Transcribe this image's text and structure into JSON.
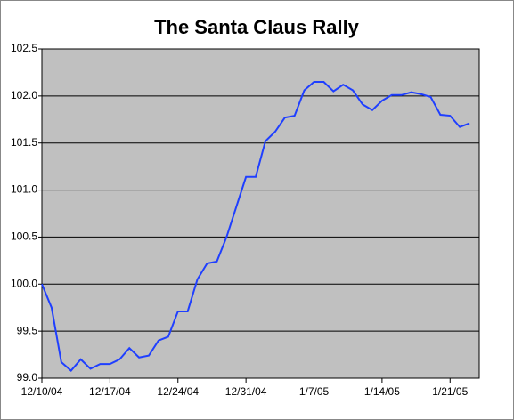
{
  "chart_data": {
    "type": "line",
    "title": "The Santa Claus Rally",
    "x": [
      "12/10/04",
      "12/11/04",
      "12/12/04",
      "12/13/04",
      "12/14/04",
      "12/15/04",
      "12/16/04",
      "12/17/04",
      "12/18/04",
      "12/19/04",
      "12/20/04",
      "12/21/04",
      "12/22/04",
      "12/23/04",
      "12/24/04",
      "12/25/04",
      "12/26/04",
      "12/27/04",
      "12/28/04",
      "12/29/04",
      "12/30/04",
      "12/31/04",
      "1/1/05",
      "1/2/05",
      "1/3/05",
      "1/4/05",
      "1/5/05",
      "1/6/05",
      "1/7/05",
      "1/8/05",
      "1/9/05",
      "1/10/05",
      "1/11/05",
      "1/12/05",
      "1/13/05",
      "1/14/05",
      "1/15/05",
      "1/16/05",
      "1/17/05",
      "1/18/05",
      "1/19/05",
      "1/20/05",
      "1/21/05",
      "1/22/05",
      "1/23/05"
    ],
    "values": [
      100.0,
      99.75,
      99.17,
      99.08,
      99.2,
      99.1,
      99.15,
      99.15,
      99.2,
      99.32,
      99.22,
      99.24,
      99.4,
      99.44,
      99.71,
      99.71,
      100.05,
      100.22,
      100.24,
      100.5,
      100.82,
      101.14,
      101.14,
      101.52,
      101.62,
      101.77,
      101.79,
      102.06,
      102.15,
      102.15,
      102.05,
      102.12,
      102.06,
      101.91,
      101.85,
      101.95,
      102.01,
      102.01,
      102.04,
      102.02,
      101.99,
      101.8,
      101.79,
      101.67,
      101.71
    ],
    "color": "#1f3fff",
    "xlim": [
      "12/10/04",
      "1/24/05"
    ],
    "xticks": [
      "12/10/04",
      "12/17/04",
      "12/24/04",
      "12/31/04",
      "1/7/05",
      "1/14/05",
      "1/21/05"
    ],
    "ylim": [
      99.0,
      102.5
    ],
    "yticks": [
      {
        "value": 99.0,
        "label": "99.0"
      },
      99.5,
      {
        "value": 100.0,
        "label": "100.0"
      },
      100.5,
      {
        "value": 101.0,
        "label": "101.0"
      },
      101.5,
      {
        "value": 102.0,
        "label": "102.0"
      },
      102.5
    ],
    "grid": true
  }
}
